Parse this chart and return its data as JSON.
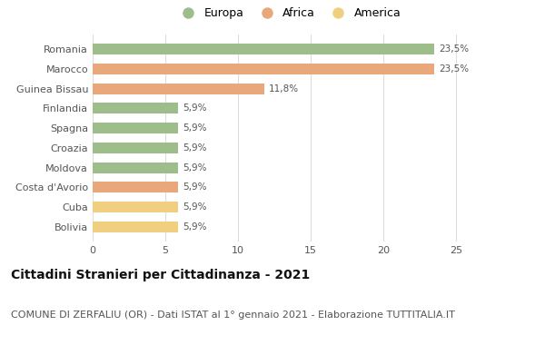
{
  "categories": [
    "Bolivia",
    "Cuba",
    "Costa d'Avorio",
    "Moldova",
    "Croazia",
    "Spagna",
    "Finlandia",
    "Guinea Bissau",
    "Marocco",
    "Romania"
  ],
  "values": [
    5.9,
    5.9,
    5.9,
    5.9,
    5.9,
    5.9,
    5.9,
    11.8,
    23.5,
    23.5
  ],
  "colors": [
    "#f0d080",
    "#f0d080",
    "#e8a87c",
    "#9dbd8a",
    "#9dbd8a",
    "#9dbd8a",
    "#9dbd8a",
    "#e8a87c",
    "#e8a87c",
    "#9dbd8a"
  ],
  "labels": [
    "5,9%",
    "5,9%",
    "5,9%",
    "5,9%",
    "5,9%",
    "5,9%",
    "5,9%",
    "11,8%",
    "23,5%",
    "23,5%"
  ],
  "legend": [
    {
      "label": "Europa",
      "color": "#9dbd8a"
    },
    {
      "label": "Africa",
      "color": "#e8a87c"
    },
    {
      "label": "America",
      "color": "#f0d080"
    }
  ],
  "title": "Cittadini Stranieri per Cittadinanza - 2021",
  "subtitle": "COMUNE DI ZERFALIU (OR) - Dati ISTAT al 1° gennaio 2021 - Elaborazione TUTTITALIA.IT",
  "xlim": [
    0,
    27
  ],
  "xticks": [
    0,
    5,
    10,
    15,
    20,
    25
  ],
  "background_color": "#ffffff",
  "grid_color": "#dddddd",
  "title_fontsize": 10,
  "subtitle_fontsize": 8,
  "label_fontsize": 7.5,
  "tick_fontsize": 8,
  "legend_fontsize": 9,
  "bar_height": 0.55
}
